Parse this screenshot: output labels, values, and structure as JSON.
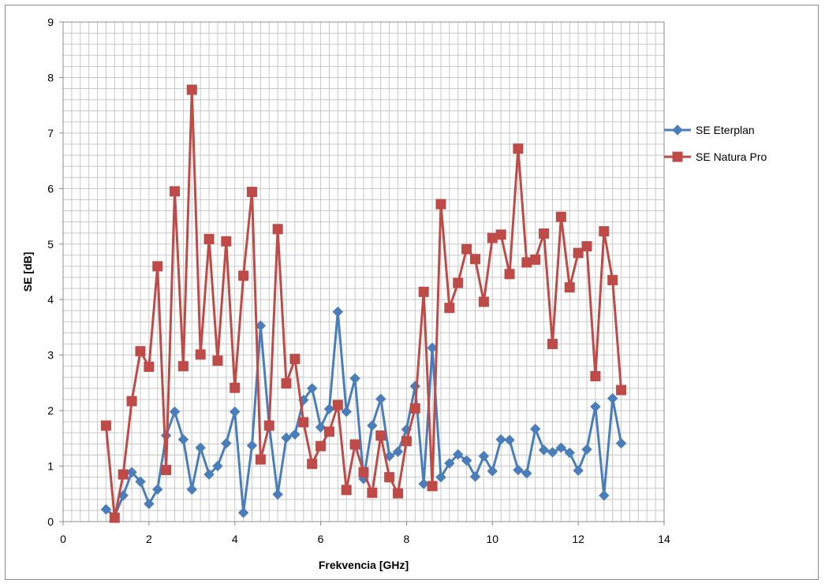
{
  "chart_data": {
    "type": "line",
    "title": "",
    "xlabel": "Frekvencia [GHz]",
    "ylabel": "SE [dB]",
    "xlim": [
      0,
      14
    ],
    "ylim": [
      0,
      9
    ],
    "xticks": [
      "0",
      "2",
      "4",
      "6",
      "8",
      "10",
      "12",
      "14"
    ],
    "yticks": [
      "0",
      "1",
      "2",
      "3",
      "4",
      "5",
      "6",
      "7",
      "8",
      "9"
    ],
    "grid": true,
    "legend_position": "right",
    "series": [
      {
        "name": "SE Eterplan",
        "color": "#4a7ebb",
        "marker": "diamond",
        "x": [
          1.0,
          1.2,
          1.4,
          1.6,
          1.8,
          2.0,
          2.2,
          2.4,
          2.6,
          2.8,
          3.0,
          3.2,
          3.4,
          3.6,
          3.8,
          4.0,
          4.2,
          4.4,
          4.6,
          4.8,
          5.0,
          5.2,
          5.4,
          5.6,
          5.8,
          6.0,
          6.2,
          6.4,
          6.6,
          6.8,
          7.0,
          7.2,
          7.4,
          7.6,
          7.8,
          8.0,
          8.2,
          8.4,
          8.6,
          8.8,
          9.0,
          9.2,
          9.4,
          9.6,
          9.8,
          10.0,
          10.2,
          10.4,
          10.6,
          10.8,
          11.0,
          11.2,
          11.4,
          11.6,
          11.8,
          12.0,
          12.2,
          12.4,
          12.6,
          12.8,
          13.0
        ],
        "y": [
          0.22,
          0.1,
          0.47,
          0.89,
          0.72,
          0.32,
          0.58,
          1.55,
          1.98,
          1.48,
          0.58,
          1.33,
          0.85,
          1.0,
          1.41,
          1.98,
          0.16,
          1.37,
          3.53,
          1.73,
          0.49,
          1.51,
          1.57,
          2.19,
          2.4,
          1.7,
          2.03,
          3.78,
          1.98,
          2.58,
          0.77,
          1.73,
          2.21,
          1.18,
          1.26,
          1.66,
          2.44,
          0.68,
          3.13,
          0.8,
          1.05,
          1.21,
          1.1,
          0.81,
          1.18,
          0.91,
          1.48,
          1.47,
          0.93,
          0.87,
          1.67,
          1.29,
          1.25,
          1.33,
          1.24,
          0.92,
          1.3,
          2.07,
          0.47,
          2.22,
          1.41
        ]
      },
      {
        "name": "SE Natura Pro",
        "color": "#be4b48",
        "marker": "square",
        "x": [
          1.0,
          1.2,
          1.4,
          1.6,
          1.8,
          2.0,
          2.2,
          2.4,
          2.6,
          2.8,
          3.0,
          3.2,
          3.4,
          3.6,
          3.8,
          4.0,
          4.2,
          4.4,
          4.6,
          4.8,
          5.0,
          5.2,
          5.4,
          5.6,
          5.8,
          6.0,
          6.2,
          6.4,
          6.6,
          6.8,
          7.0,
          7.2,
          7.4,
          7.6,
          7.8,
          8.0,
          8.2,
          8.4,
          8.6,
          8.8,
          9.0,
          9.2,
          9.4,
          9.6,
          9.8,
          10.0,
          10.2,
          10.4,
          10.6,
          10.8,
          11.0,
          11.2,
          11.4,
          11.6,
          11.8,
          12.0,
          12.2,
          12.4,
          12.6,
          12.8,
          13.0
        ],
        "y": [
          1.73,
          0.07,
          0.85,
          2.17,
          3.07,
          2.79,
          4.6,
          0.93,
          5.95,
          2.8,
          7.78,
          3.01,
          5.09,
          2.9,
          5.05,
          2.41,
          4.43,
          5.94,
          1.12,
          1.73,
          5.27,
          2.49,
          2.93,
          1.79,
          1.04,
          1.36,
          1.62,
          2.1,
          0.57,
          1.39,
          0.89,
          0.52,
          1.55,
          0.8,
          0.51,
          1.45,
          2.04,
          4.14,
          0.64,
          5.72,
          3.85,
          4.3,
          4.91,
          4.73,
          3.96,
          5.11,
          5.17,
          4.46,
          6.72,
          4.67,
          4.72,
          5.19,
          3.2,
          5.49,
          4.22,
          4.84,
          4.96,
          2.62,
          5.23,
          4.35,
          2.37
        ]
      }
    ]
  }
}
